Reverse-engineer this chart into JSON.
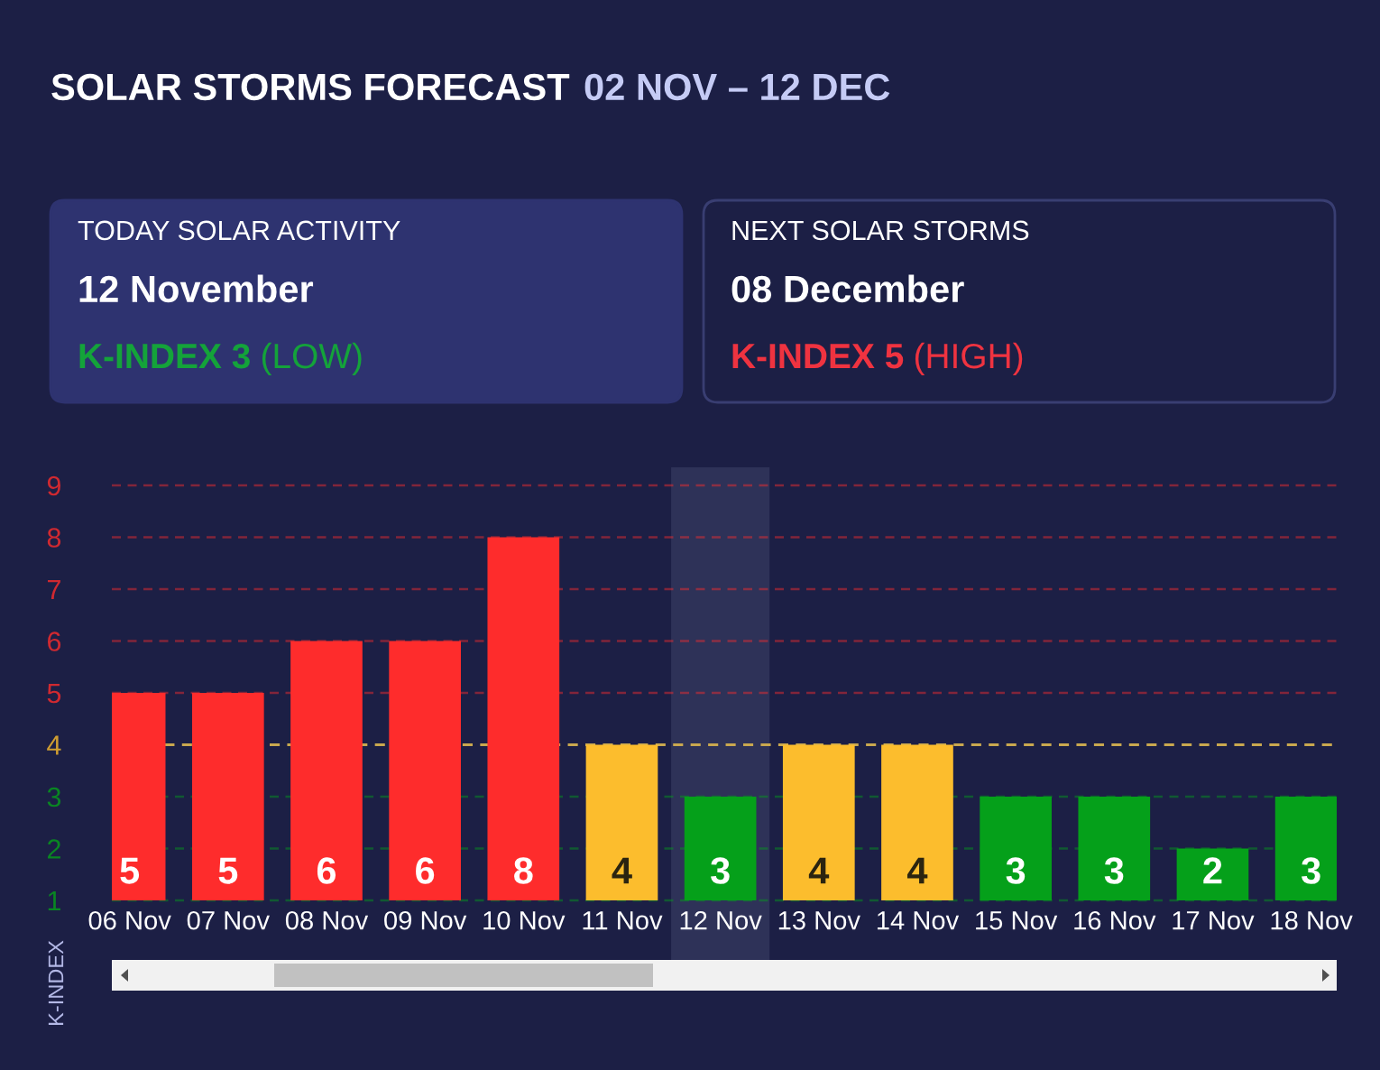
{
  "chart_data": {
    "type": "bar",
    "title": "SOLAR STORMS FORECAST",
    "subtitle": "02 NOV – 12 DEC",
    "ylabel": "K-INDEX",
    "annotations": [
      "TODAY SOLAR ACTIVITY",
      "12 November",
      "K-INDEX 3 (LOW)",
      "NEXT SOLAR STORMS",
      "08 December",
      "K-INDEX 5 (HIGH)"
    ],
    "categories": [
      "06 Nov",
      "07 Nov",
      "08 Nov",
      "09 Nov",
      "10 Nov",
      "11 Nov",
      "12 Nov",
      "13 Nov",
      "14 Nov",
      "15 Nov",
      "16 Nov",
      "17 Nov",
      "18 Nov"
    ],
    "values": [
      5,
      5,
      6,
      6,
      8,
      4,
      3,
      4,
      4,
      3,
      3,
      2,
      3
    ],
    "colors": [
      "#fe2c2c",
      "#fe2c2c",
      "#fe2c2c",
      "#fe2c2c",
      "#fe2c2c",
      "#fcbd2d",
      "#05a01a",
      "#fcbd2d",
      "#fcbd2d",
      "#05a01a",
      "#05a01a",
      "#05a01a",
      "#05a01a"
    ],
    "data_labels": true,
    "ylim": [
      1,
      9
    ],
    "yticks": [
      1,
      2,
      3,
      4,
      5,
      6,
      7,
      8,
      9
    ],
    "grid": "y",
    "line_style": "dashed",
    "ref_lines": [
      {
        "axis": "y",
        "value": 4,
        "color": "#c9a84f",
        "line_style": "dashed"
      }
    ],
    "bands": [
      {
        "axis": "x",
        "from": "12 Nov",
        "to": "12 Nov",
        "color": "#2e3258"
      }
    ]
  }
}
